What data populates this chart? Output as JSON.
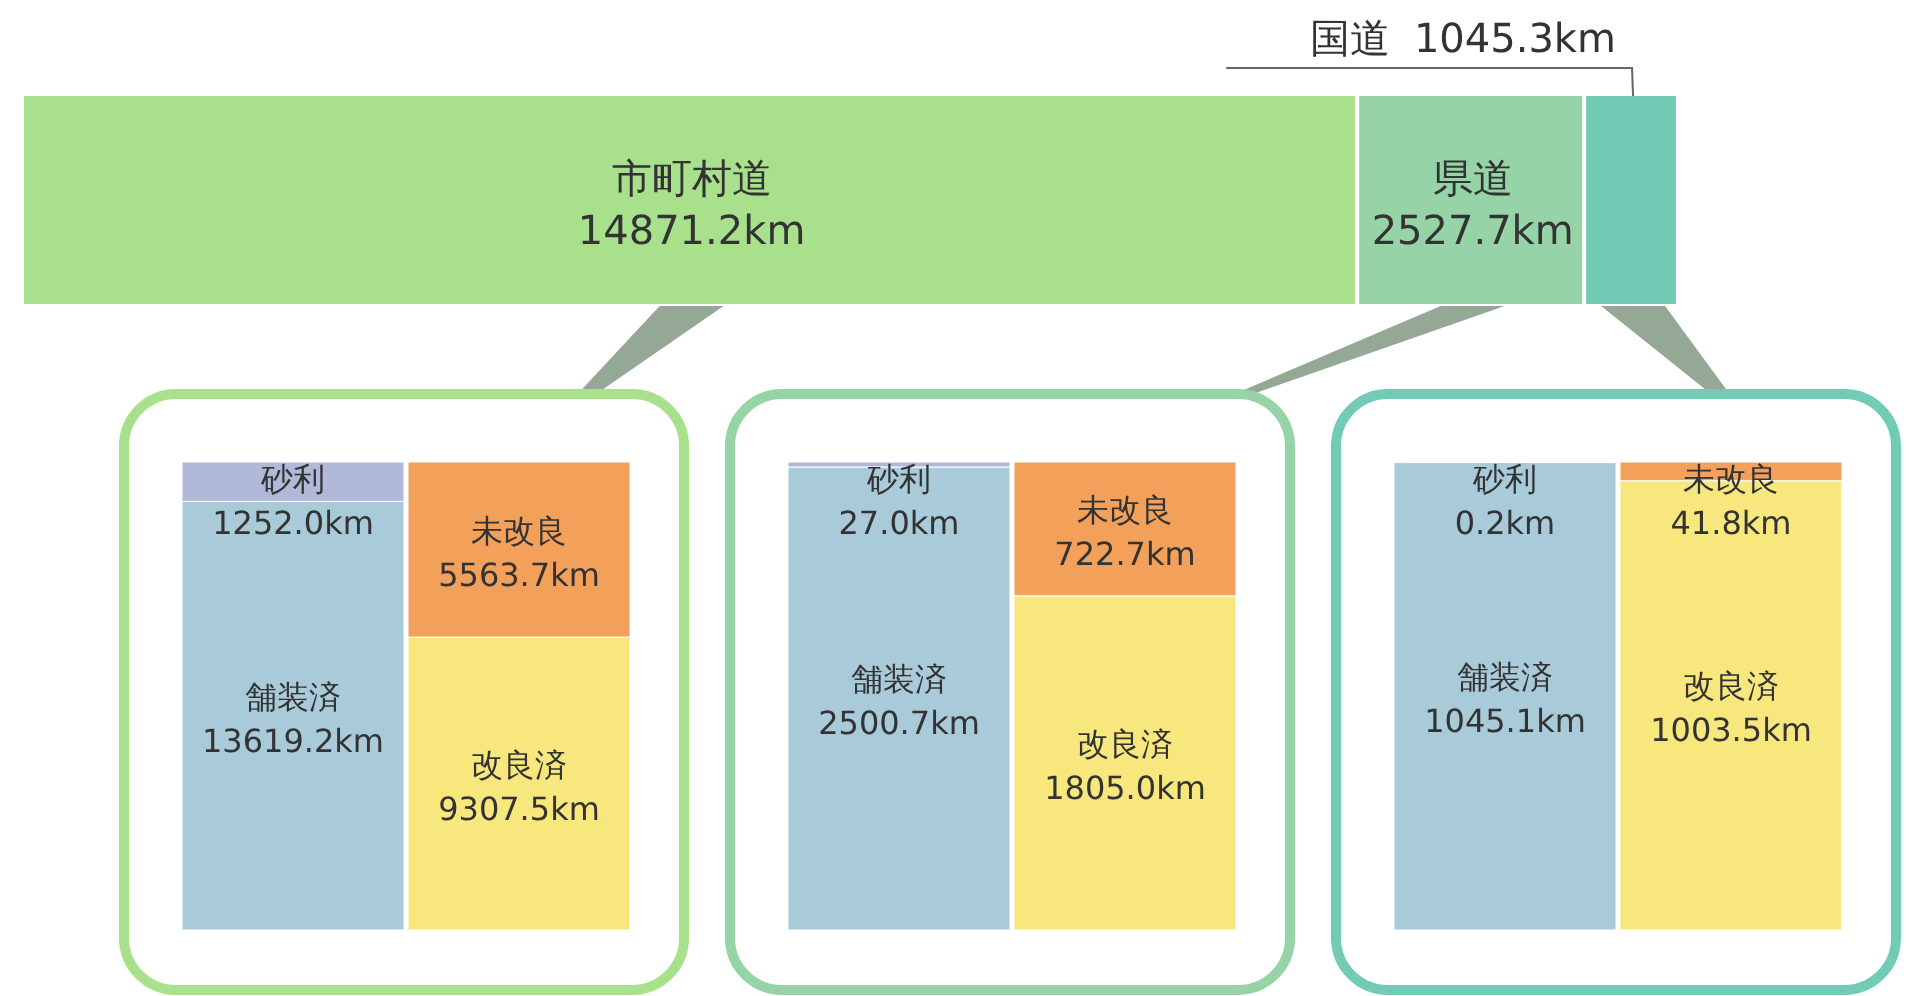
{
  "chart_data": [
    {
      "type": "bar",
      "orientation": "horizontal",
      "stacked": true,
      "categories": [
        null
      ],
      "series": [
        {
          "name": "市町村道",
          "color": "#a8e08c",
          "values": [
            14871.2
          ],
          "value_labels": [
            "14871.2km"
          ]
        },
        {
          "name": "県道",
          "color": "#96d4a8",
          "values": [
            2527.7
          ],
          "value_labels": [
            "2527.7km"
          ]
        },
        {
          "name": "国道",
          "color": "#72cbb5",
          "values": [
            1045.3
          ],
          "value_labels": [
            "1045.3km"
          ]
        }
      ]
    },
    {
      "type": "bar",
      "stacked": true,
      "categories": [
        null,
        null
      ],
      "series": [
        {
          "name": "舗装済",
          "color": "#a9cad9",
          "values": [
            13619.2,
            null
          ],
          "value_labels": [
            "13619.2km",
            null
          ]
        },
        {
          "name": "砂利",
          "color": "#b1b9d9",
          "values": [
            1252.0,
            null
          ],
          "value_labels": [
            "1252.0km",
            null
          ]
        },
        {
          "name": "改良済",
          "color": "#f7e77c",
          "values": [
            null,
            9307.5
          ],
          "value_labels": [
            null,
            "9307.5km"
          ]
        },
        {
          "name": "未改良",
          "color": "#f3a05b",
          "values": [
            null,
            5563.7
          ],
          "value_labels": [
            null,
            "5563.7km"
          ]
        }
      ]
    },
    {
      "type": "bar",
      "stacked": true,
      "categories": [
        null,
        null
      ],
      "series": [
        {
          "name": "舗装済",
          "color": "#a9cad9",
          "values": [
            2500.7,
            null
          ],
          "value_labels": [
            "2500.7km",
            null
          ]
        },
        {
          "name": "砂利",
          "color": "#b1b9d9",
          "values": [
            27.0,
            null
          ],
          "value_labels": [
            "27.0km",
            null
          ]
        },
        {
          "name": "改良済",
          "color": "#f7e77c",
          "values": [
            null,
            1805.0
          ],
          "value_labels": [
            null,
            "1805.0km"
          ]
        },
        {
          "name": "未改良",
          "color": "#f3a05b",
          "values": [
            null,
            722.7
          ],
          "value_labels": [
            null,
            "722.7km"
          ]
        }
      ]
    },
    {
      "type": "bar",
      "stacked": true,
      "categories": [
        null,
        null
      ],
      "series": [
        {
          "name": "舗装済",
          "color": "#a9cad9",
          "values": [
            1045.1,
            null
          ],
          "value_labels": [
            "1045.1km",
            null
          ]
        },
        {
          "name": "砂利",
          "color": "#b1b9d9",
          "values": [
            0.2,
            null
          ],
          "value_labels": [
            "0.2km",
            null
          ]
        },
        {
          "name": "改良済",
          "color": "#f7e77c",
          "values": [
            null,
            1003.5
          ],
          "value_labels": [
            null,
            "1003.5km"
          ]
        },
        {
          "name": "未改良",
          "color": "#f3a05b",
          "values": [
            null,
            41.8
          ],
          "value_labels": [
            null,
            "41.8km"
          ]
        }
      ]
    }
  ]
}
